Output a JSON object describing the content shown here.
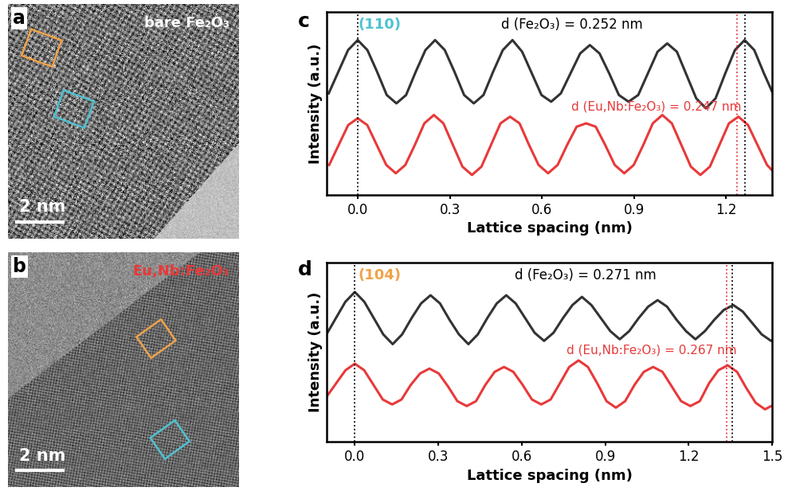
{
  "panels": [
    {
      "label": "a",
      "type": "image",
      "caption": "bare Fe₂O₃",
      "caption_color": "#ffffff",
      "scale_bar": "2 nm"
    },
    {
      "label": "b",
      "type": "image",
      "caption": "Eu,Nb:Fe₂O₃",
      "caption_color": "#e8393a",
      "scale_bar": "2 nm"
    }
  ],
  "chart_data": [
    {
      "type": "line",
      "label": "c",
      "xlabel": "Lattice spacing (nm)",
      "ylabel": "Intensity (a.u.)",
      "xlim": [
        -0.1,
        1.35
      ],
      "ylim": [
        0,
        11
      ],
      "xticks": [
        {
          "value": 0,
          "label": "0.0"
        },
        0.3,
        0.6,
        0.9,
        1.2
      ],
      "yticks": [],
      "tick_labels": "x",
      "annotations": [
        {
          "text": "(110)",
          "color": "#4fc1d1"
        },
        {
          "text": "d (Fe₂O₃) = 0.252 nm",
          "color": "#000000"
        },
        {
          "text": "d (Eu,Nb:Fe₂O₃) = 0.247 nm",
          "color": "#e8393a"
        }
      ],
      "reference_lines": [
        {
          "x": 0,
          "color": "#000000",
          "line_style": "dotted"
        },
        {
          "x": 1.26,
          "color": "#000000",
          "line_style": "dotted"
        },
        {
          "x": 1.235,
          "color": "#e8393a",
          "line_style": "dotted"
        }
      ],
      "series": [
        {
          "color": "#333333",
          "x": [
            -0.0945,
            -0.063,
            -0.0315,
            0,
            0.0315,
            0.063,
            0.0945,
            0.126,
            0.1575,
            0.189,
            0.2205,
            0.252,
            0.2835,
            0.315,
            0.3465,
            0.378,
            0.4095,
            0.441,
            0.4725,
            0.504,
            0.5355,
            0.567,
            0.5985,
            0.63,
            0.6615,
            0.693,
            0.7245,
            0.756,
            0.7875,
            0.819,
            0.8505,
            0.882,
            0.9135,
            0.945,
            0.9765,
            1.008,
            1.0395,
            1.071,
            1.1025,
            1.134,
            1.1655,
            1.197,
            1.2285,
            1.26,
            1.2915,
            1.323,
            1.3545
          ],
          "values": [
            6.1,
            7.4,
            8.7,
            9.3,
            8.7,
            7.4,
            6.0,
            5.5,
            6.0,
            7.4,
            8.7,
            9.3,
            8.7,
            7.4,
            6.0,
            5.5,
            6.0,
            7.4,
            8.7,
            9.3,
            8.6,
            7.3,
            6.0,
            5.6,
            6.1,
            7.3,
            8.5,
            9.0,
            8.5,
            7.3,
            6.0,
            5.6,
            6.0,
            7.3,
            8.6,
            9.1,
            8.6,
            7.2,
            5.8,
            5.2,
            5.8,
            7.3,
            8.7,
            9.3,
            8.7,
            7.3,
            6.0
          ]
        },
        {
          "color": "#e8393a",
          "x": [
            -0.093,
            -0.062,
            -0.031,
            0,
            0.031,
            0.062,
            0.093,
            0.124,
            0.155,
            0.186,
            0.217,
            0.248,
            0.279,
            0.31,
            0.341,
            0.372,
            0.403,
            0.434,
            0.465,
            0.496,
            0.527,
            0.558,
            0.589,
            0.62,
            0.651,
            0.682,
            0.713,
            0.744,
            0.775,
            0.806,
            0.837,
            0.868,
            0.899,
            0.93,
            0.961,
            0.992,
            1.023,
            1.054,
            1.085,
            1.116,
            1.147,
            1.178,
            1.209,
            1.24,
            1.271,
            1.302,
            1.333,
            1.364
          ],
          "values": [
            1.8,
            3.0,
            4.2,
            4.6,
            4.2,
            3.0,
            1.8,
            1.3,
            1.8,
            3.0,
            4.3,
            4.8,
            4.3,
            3.0,
            1.7,
            1.2,
            1.7,
            3.0,
            4.3,
            4.7,
            4.3,
            3.0,
            1.8,
            1.3,
            1.8,
            3.0,
            4.1,
            4.3,
            4.1,
            3.0,
            1.8,
            1.3,
            1.8,
            3.0,
            4.3,
            4.8,
            4.3,
            3.0,
            1.7,
            1.2,
            1.7,
            3.0,
            4.3,
            4.7,
            4.2,
            3.0,
            1.8,
            1.2
          ]
        }
      ]
    },
    {
      "type": "line",
      "label": "d",
      "xlabel": "Lattice spacing (nm)",
      "ylabel": "Intensity (a.u.)",
      "xlim": [
        -0.1,
        1.5
      ],
      "ylim": [
        0,
        11
      ],
      "xticks": [
        {
          "value": 0,
          "label": "0.0"
        },
        0.3,
        0.6,
        0.9,
        1.2,
        1.5
      ],
      "yticks": [],
      "tick_labels": "x",
      "annotations": [
        {
          "text": "(104)",
          "color": "#f0a24a"
        },
        {
          "text": "d (Fe₂O₃) = 0.271 nm",
          "color": "#000000"
        },
        {
          "text": "d (Eu,Nb:Fe₂O₃) = 0.267 nm",
          "color": "#e8393a"
        }
      ],
      "reference_lines": [
        {
          "x": 0,
          "color": "#000000",
          "line_style": "dotted"
        },
        {
          "x": 1.355,
          "color": "#000000",
          "line_style": "dotted"
        },
        {
          "x": 1.335,
          "color": "#e8393a",
          "line_style": "dotted"
        }
      ],
      "series": [
        {
          "color": "#333333",
          "x": [
            -0.102,
            -0.068,
            -0.034,
            0,
            0.034,
            0.068,
            0.102,
            0.136,
            0.17,
            0.204,
            0.238,
            0.272,
            0.306,
            0.34,
            0.374,
            0.408,
            0.442,
            0.476,
            0.51,
            0.544,
            0.578,
            0.612,
            0.646,
            0.68,
            0.714,
            0.748,
            0.782,
            0.816,
            0.85,
            0.884,
            0.918,
            0.952,
            0.986,
            1.02,
            1.054,
            1.088,
            1.122,
            1.156,
            1.19,
            1.224,
            1.258,
            1.292,
            1.326,
            1.36,
            1.394,
            1.428,
            1.462,
            1.496,
            1.53
          ],
          "values": [
            6.6,
            7.6,
            8.6,
            9.2,
            8.6,
            7.6,
            6.6,
            6.0,
            6.6,
            7.6,
            8.5,
            9.0,
            8.5,
            7.5,
            6.6,
            6.0,
            6.6,
            7.6,
            8.5,
            9.0,
            8.5,
            7.6,
            6.7,
            6.2,
            6.7,
            7.6,
            8.4,
            8.9,
            8.4,
            7.6,
            6.8,
            6.3,
            6.8,
            7.6,
            8.3,
            8.7,
            8.3,
            7.5,
            6.8,
            6.3,
            6.8,
            7.5,
            8.1,
            8.4,
            8.0,
            7.3,
            6.6,
            6.2,
            6.5
          ]
        },
        {
          "color": "#e8393a",
          "x": [
            -0.1005,
            -0.067,
            -0.0335,
            0,
            0.0335,
            0.067,
            0.1005,
            0.134,
            0.1675,
            0.201,
            0.2345,
            0.268,
            0.3015,
            0.335,
            0.3685,
            0.402,
            0.4355,
            0.469,
            0.5025,
            0.536,
            0.5695,
            0.603,
            0.6365,
            0.67,
            0.7035,
            0.737,
            0.7705,
            0.804,
            0.8375,
            0.871,
            0.9045,
            0.938,
            0.9715,
            1.005,
            1.0385,
            1.072,
            1.1055,
            1.139,
            1.1725,
            1.206,
            1.2395,
            1.273,
            1.3065,
            1.34,
            1.3735,
            1.407,
            1.4405,
            1.474,
            1.5075
          ],
          "values": [
            2.8,
            3.6,
            4.4,
            4.8,
            4.4,
            3.5,
            2.6,
            2.3,
            2.6,
            3.5,
            4.2,
            4.5,
            4.2,
            3.4,
            2.5,
            2.2,
            2.5,
            3.5,
            4.3,
            4.6,
            4.3,
            3.5,
            2.6,
            2.3,
            2.6,
            3.6,
            4.6,
            5.0,
            4.6,
            3.6,
            2.5,
            2.1,
            2.5,
            3.5,
            4.3,
            4.6,
            4.3,
            3.4,
            2.5,
            2.2,
            2.5,
            3.6,
            4.4,
            4.7,
            4.3,
            3.3,
            2.4,
            2.0,
            2.3
          ]
        }
      ]
    }
  ]
}
